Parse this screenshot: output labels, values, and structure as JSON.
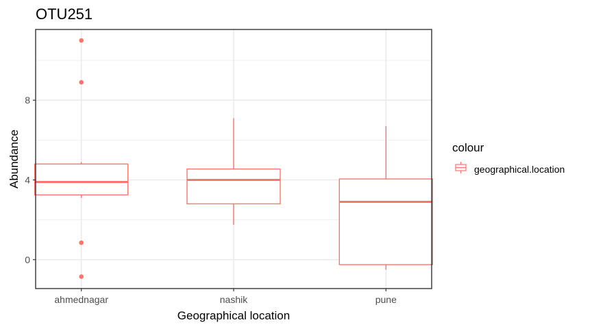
{
  "chart_data": {
    "type": "box",
    "title": "OTU251",
    "xlabel": "Geographical location",
    "ylabel": "Abundance",
    "categories": [
      "ahmednagar",
      "nashik",
      "pune"
    ],
    "yticks": [
      0,
      4,
      8
    ],
    "ytick_labels": [
      "0",
      "4",
      "8"
    ],
    "ylim": [
      -1.45,
      11.55
    ],
    "grid": true,
    "legend": {
      "title": "colour",
      "entries": [
        "geographical.location"
      ],
      "position": "right"
    },
    "color": "#F8766D",
    "boxes": [
      {
        "category": "ahmednagar",
        "whisker_low": 3.1,
        "q1": 3.25,
        "median": 3.9,
        "q3": 4.8,
        "whisker_high": 4.9,
        "outliers": [
          11.0,
          8.9,
          0.85,
          -0.85
        ]
      },
      {
        "category": "nashik",
        "whisker_low": 1.75,
        "q1": 2.8,
        "median": 4.0,
        "q3": 4.55,
        "whisker_high": 7.1,
        "outliers": []
      },
      {
        "category": "pune",
        "whisker_low": -0.5,
        "q1": -0.25,
        "median": 2.9,
        "q3": 4.05,
        "whisker_high": 6.7,
        "outliers": []
      }
    ]
  }
}
